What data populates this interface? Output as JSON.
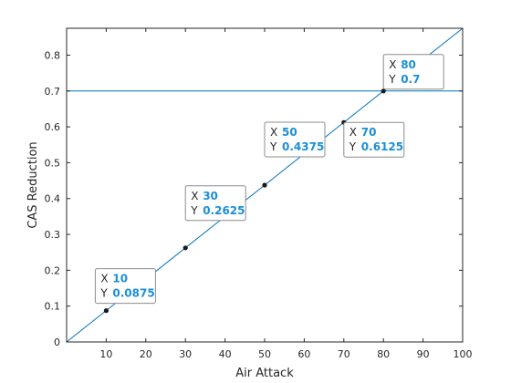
{
  "chart_data": {
    "type": "line",
    "xlabel": "Air Attack",
    "ylabel": "CAS Reduction",
    "xlim": [
      0,
      100
    ],
    "ylim": [
      0,
      0.875
    ],
    "xticks": [
      10,
      20,
      30,
      40,
      50,
      60,
      70,
      80,
      90,
      100
    ],
    "yticks": [
      0,
      0.1,
      0.2,
      0.3,
      0.4,
      0.5,
      0.6,
      0.7,
      0.8
    ],
    "grid": false,
    "line_color": "#0072bd",
    "series": [
      {
        "x": [
          0,
          100
        ],
        "y": [
          0,
          0.875
        ]
      }
    ],
    "reference_line": {
      "y": 0.7,
      "color": "#0072bd"
    },
    "markers": [
      {
        "x": 10,
        "y": 0.0875,
        "x_label": "10",
        "y_label": "0.0875"
      },
      {
        "x": 30,
        "y": 0.2625,
        "x_label": "30",
        "y_label": "0.2625"
      },
      {
        "x": 50,
        "y": 0.4375,
        "x_label": "50",
        "y_label": "0.4375"
      },
      {
        "x": 70,
        "y": 0.6125,
        "x_label": "70",
        "y_label": "0.6125"
      },
      {
        "x": 80,
        "y": 0.7,
        "x_label": "80",
        "y_label": "0.7"
      }
    ],
    "datatip_key_x": "X",
    "datatip_key_y": "Y"
  }
}
